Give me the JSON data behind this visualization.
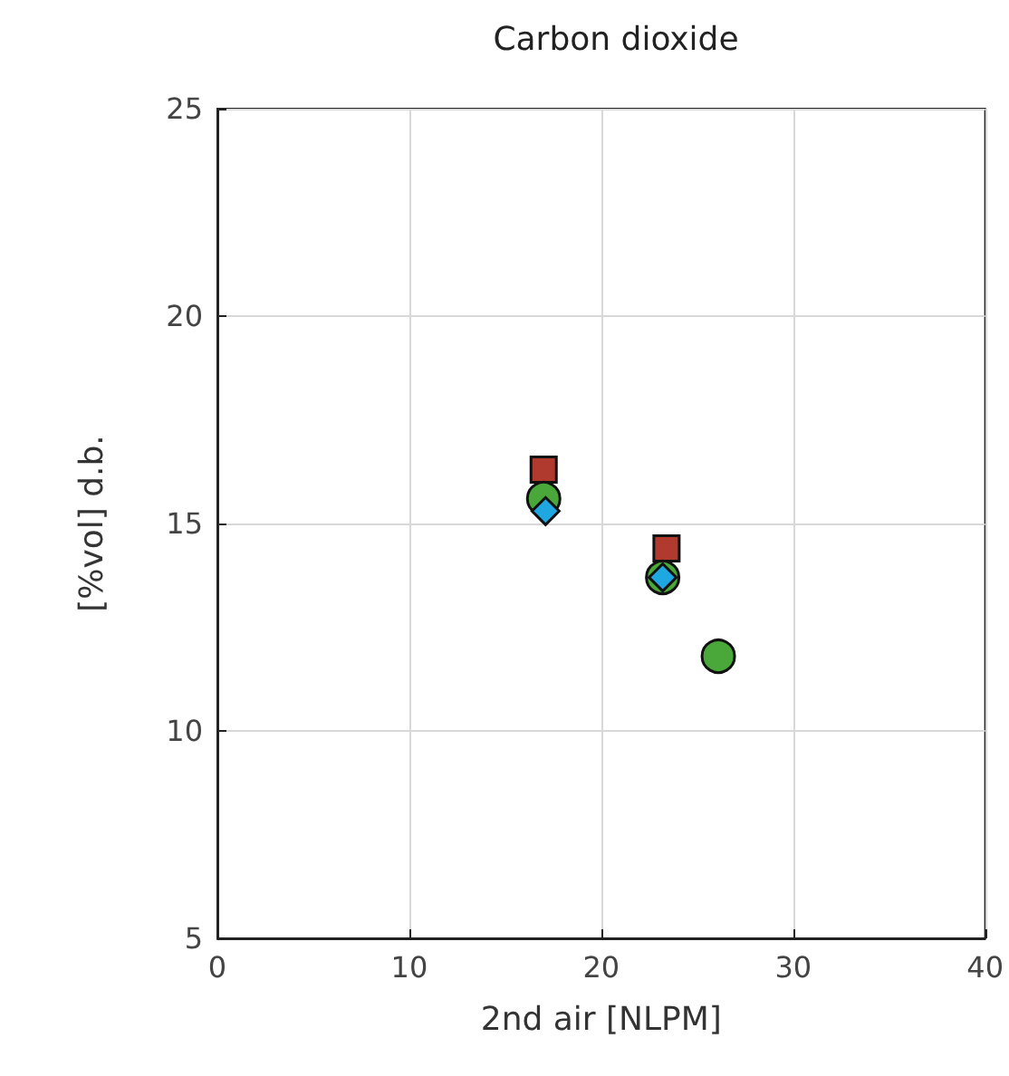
{
  "chart_data": {
    "type": "scatter",
    "title": "Carbon dioxide",
    "xlabel": "2nd air [NLPM]",
    "ylabel": "[%vol] d.b.",
    "xlim": [
      0,
      40
    ],
    "xticks": [
      0,
      10,
      20,
      30,
      40
    ],
    "ylim": [
      5,
      25
    ],
    "yticks": [
      5,
      10,
      15,
      20,
      25
    ],
    "grid": true,
    "series": [
      {
        "color": "#b03a2e",
        "marker": "square",
        "x": [
          17.0,
          23.4
        ],
        "values": [
          16.3,
          14.4
        ]
      },
      {
        "color": "#4aa83a",
        "marker": "circle",
        "x": [
          17.0,
          23.2,
          26.1
        ],
        "values": [
          15.6,
          13.7,
          11.8
        ]
      },
      {
        "color": "#1ea7e0",
        "marker": "diamond",
        "x": [
          17.1,
          23.2
        ],
        "values": [
          15.3,
          13.7
        ]
      }
    ]
  }
}
